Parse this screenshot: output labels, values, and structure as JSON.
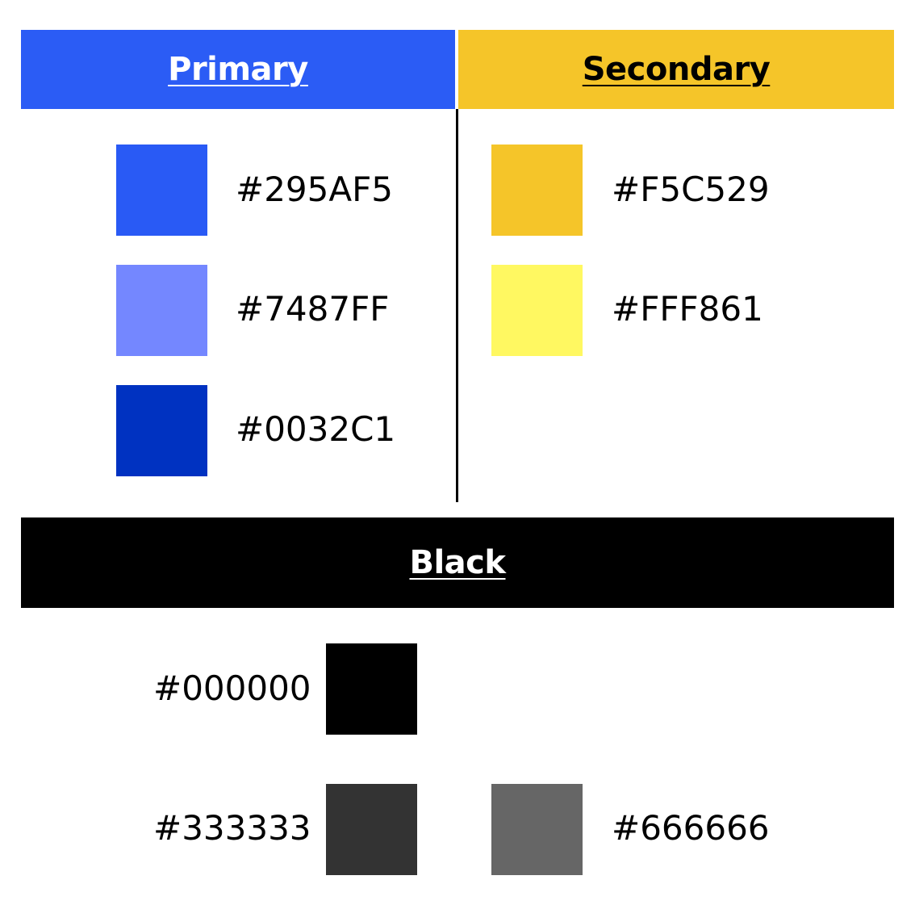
{
  "headers": {
    "primary": {
      "label": "Primary",
      "color": "#2B5CF5"
    },
    "secondary": {
      "label": "Secondary",
      "color": "#F5C529"
    },
    "black": {
      "label": "Black",
      "color": "#000000"
    }
  },
  "primary_colors": [
    {
      "hex": "#295AF5",
      "swatch": "#295AF5"
    },
    {
      "hex": "#7487FF",
      "swatch": "#7487FF"
    },
    {
      "hex": "#0032C1",
      "swatch": "#0032C1"
    }
  ],
  "secondary_colors": [
    {
      "hex": "#F5C529",
      "swatch": "#F5C529"
    },
    {
      "hex": "#FFF861",
      "swatch": "#FFF861"
    }
  ],
  "black_colors": [
    {
      "hex": "#000000",
      "swatch": "#000000"
    },
    {
      "hex": "#333333",
      "swatch": "#333333"
    },
    {
      "hex": "#666666",
      "swatch": "#666666"
    }
  ]
}
